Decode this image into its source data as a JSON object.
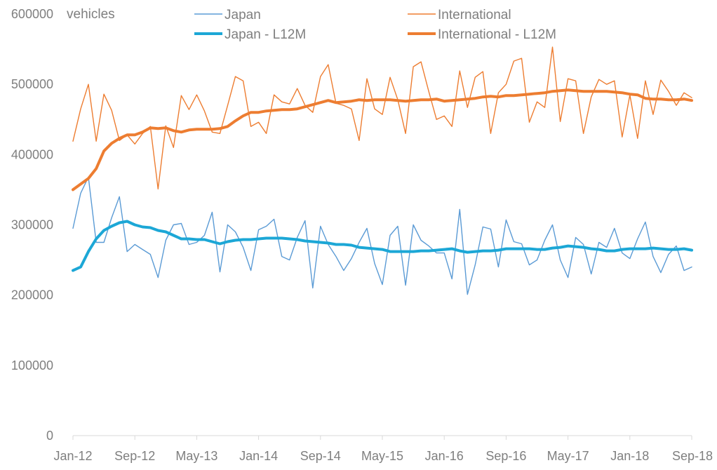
{
  "chart_data": {
    "type": "line",
    "title": "",
    "ylabel": "vehicles",
    "xlabel": "",
    "ylim": [
      0,
      600000
    ],
    "yticks": [
      "600000",
      "500000",
      "400000",
      "300000",
      "200000",
      "100000",
      "0"
    ],
    "ytick_values": [
      600000,
      500000,
      400000,
      300000,
      200000,
      100000,
      0
    ],
    "xtick_labels": [
      "Jan-12",
      "Sep-12",
      "May-13",
      "Jan-14",
      "Sep-14",
      "May-15",
      "Jan-16",
      "Sep-16",
      "May-17",
      "Jan-18",
      "Sep-18"
    ],
    "xtick_indices": [
      0,
      8,
      16,
      24,
      32,
      40,
      48,
      56,
      64,
      72,
      80
    ],
    "n_points": 81,
    "legend_position": "top",
    "colors": {
      "japan": "#5b9bd5",
      "international": "#ed7d31",
      "japan_l12m": "#1ca7d6",
      "international_l12m": "#ed7d31"
    },
    "series": [
      {
        "name": "Japan",
        "key": "japan",
        "stroke": "thin",
        "values": [
          295000,
          345000,
          368000,
          275000,
          275000,
          310000,
          340000,
          262000,
          272000,
          265000,
          258000,
          225000,
          278000,
          300000,
          302000,
          272000,
          275000,
          285000,
          318000,
          233000,
          300000,
          290000,
          268000,
          235000,
          293000,
          298000,
          308000,
          255000,
          250000,
          282000,
          306000,
          210000,
          298000,
          272000,
          255000,
          235000,
          252000,
          275000,
          295000,
          245000,
          215000,
          285000,
          298000,
          214000,
          300000,
          278000,
          270000,
          260000,
          260000,
          223000,
          322000,
          201000,
          243000,
          297000,
          294000,
          240000,
          307000,
          276000,
          273000,
          243000,
          250000,
          278000,
          300000,
          250000,
          225000,
          282000,
          272000,
          230000,
          275000,
          268000,
          295000,
          260000,
          252000,
          280000,
          304000,
          255000,
          232000,
          258000,
          270000,
          235000,
          240000
        ]
      },
      {
        "name": "International",
        "key": "international",
        "stroke": "thin",
        "values": [
          419000,
          465000,
          500000,
          419000,
          486000,
          463000,
          420000,
          428000,
          415000,
          430000,
          440000,
          351000,
          441000,
          410000,
          484000,
          464000,
          485000,
          462000,
          432000,
          430000,
          470000,
          511000,
          505000,
          440000,
          446000,
          430000,
          485000,
          475000,
          472000,
          494000,
          470000,
          460000,
          511000,
          528000,
          473000,
          470000,
          465000,
          420000,
          508000,
          465000,
          457000,
          510000,
          478000,
          430000,
          525000,
          532000,
          490000,
          450000,
          455000,
          440000,
          519000,
          467000,
          510000,
          518000,
          430000,
          488000,
          500000,
          533000,
          537000,
          446000,
          475000,
          467000,
          553000,
          447000,
          508000,
          505000,
          430000,
          482000,
          507000,
          500000,
          505000,
          425000,
          485000,
          423000,
          505000,
          457000,
          506000,
          490000,
          470000,
          488000,
          481000
        ]
      },
      {
        "name": "Japan - L12M",
        "key": "japan_l12m",
        "stroke": "thick",
        "values": [
          235000,
          240000,
          262000,
          280000,
          292000,
          298000,
          303000,
          305000,
          300000,
          297000,
          296000,
          292000,
          290000,
          285000,
          280000,
          280000,
          279000,
          279000,
          276000,
          273000,
          276000,
          278000,
          279000,
          279000,
          280000,
          281000,
          281000,
          281000,
          280000,
          279000,
          277000,
          276000,
          275000,
          274000,
          272000,
          272000,
          271000,
          268000,
          267000,
          266000,
          265000,
          262000,
          262000,
          262000,
          262000,
          263000,
          263000,
          264000,
          265000,
          266000,
          263000,
          261000,
          262000,
          263000,
          263000,
          264000,
          266000,
          266000,
          266000,
          266000,
          265000,
          265000,
          267000,
          268000,
          270000,
          269000,
          268000,
          266000,
          265000,
          263000,
          263000,
          265000,
          266000,
          266000,
          266000,
          267000,
          266000,
          265000,
          265000,
          266000,
          264000
        ]
      },
      {
        "name": "International - L12M",
        "key": "international_l12m",
        "stroke": "thick",
        "values": [
          350000,
          358000,
          366000,
          380000,
          405000,
          416000,
          423000,
          428000,
          428000,
          432000,
          438000,
          437000,
          438000,
          434000,
          432000,
          435000,
          436000,
          436000,
          436000,
          437000,
          440000,
          448000,
          455000,
          460000,
          460000,
          462000,
          463000,
          464000,
          464000,
          465000,
          468000,
          471000,
          474000,
          477000,
          474000,
          475000,
          476000,
          478000,
          477000,
          478000,
          478000,
          478000,
          477000,
          476000,
          477000,
          478000,
          478000,
          479000,
          476000,
          477000,
          478000,
          479000,
          480000,
          482000,
          483000,
          482000,
          484000,
          484000,
          485000,
          486000,
          487000,
          488000,
          490000,
          491000,
          492000,
          491000,
          490000,
          490000,
          490000,
          490000,
          489000,
          488000,
          486000,
          485000,
          480000,
          479000,
          479000,
          478000,
          478000,
          479000,
          477000
        ]
      }
    ]
  }
}
